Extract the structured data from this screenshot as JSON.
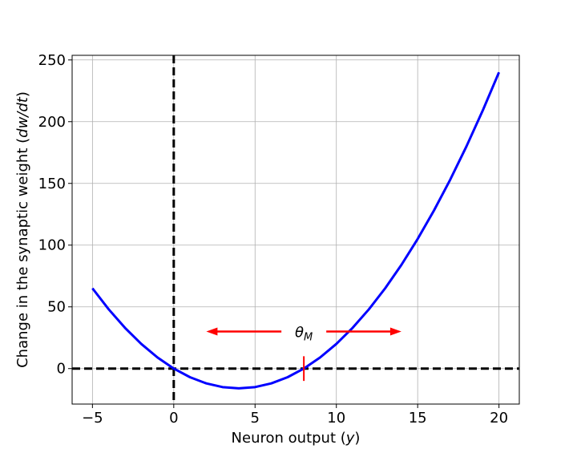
{
  "chart_data": {
    "type": "line",
    "xlabel_main": "Neuron output (",
    "xlabel_var": "y",
    "xlabel_close": ")",
    "ylabel_main": "Change in the synaptic weight (",
    "ylabel_var": "dw/dt",
    "ylabel_close": ")",
    "xlim": [
      -6.25,
      21.25
    ],
    "ylim": [
      -28.75,
      253.75
    ],
    "x_ticks": [
      -5,
      0,
      5,
      10,
      15,
      20
    ],
    "x_tick_labels": [
      "−5",
      "0",
      "5",
      "10",
      "15",
      "20"
    ],
    "y_ticks": [
      0,
      50,
      100,
      150,
      200,
      250
    ],
    "y_tick_labels": [
      "0",
      "50",
      "100",
      "150",
      "200",
      "250"
    ],
    "grid": true,
    "series": [
      {
        "color": "#0000ff",
        "x": [
          -5,
          -4,
          -3,
          -2,
          -1,
          0,
          1,
          2,
          3,
          4,
          5,
          6,
          7,
          8,
          9,
          10,
          11,
          12,
          13,
          14,
          15,
          16,
          17,
          18,
          19,
          20
        ],
        "y": [
          65,
          48,
          33,
          20,
          9,
          0,
          -7,
          -12,
          -15,
          -16,
          -15,
          -12,
          -7,
          0,
          9,
          20,
          33,
          48,
          65,
          84,
          105,
          128,
          153,
          180,
          209,
          240
        ]
      }
    ],
    "reference_lines": {
      "x": 0,
      "y": 0,
      "color": "#000000",
      "style": "dashed"
    },
    "threshold": {
      "x": 8,
      "tick_half_height": 10,
      "color": "#ff0000"
    },
    "annotation": {
      "symbol": "θ",
      "subscript": "M",
      "x": 8,
      "y": 30,
      "arrow_left_to": 2,
      "arrow_right_to": 14,
      "color": "#ff0000"
    }
  }
}
